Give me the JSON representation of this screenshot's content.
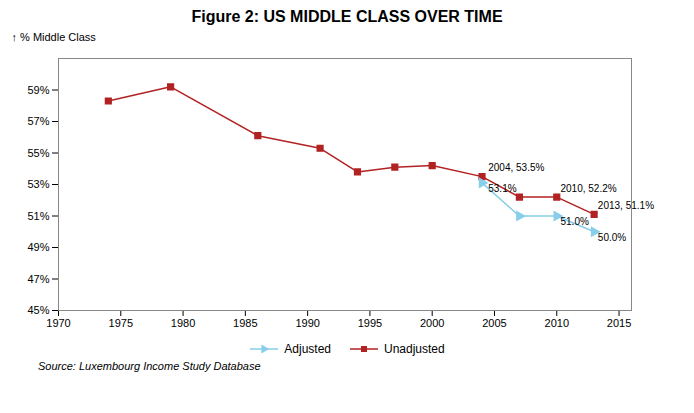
{
  "chart_data": {
    "type": "line",
    "title": "Figure 2: US MIDDLE CLASS OVER TIME",
    "ylabel": "% Middle Class",
    "source": "Source: Luxembourg Income Study Database",
    "xlim": [
      1970,
      2016
    ],
    "ylim": [
      45,
      61
    ],
    "xticks": [
      1970,
      1975,
      1980,
      1985,
      1990,
      1995,
      2000,
      2005,
      2010,
      2015
    ],
    "yticks": [
      {
        "value": 45,
        "label": "45%"
      },
      {
        "value": 47,
        "label": "47%"
      },
      {
        "value": 49,
        "label": "49%"
      },
      {
        "value": 51,
        "label": "51%"
      },
      {
        "value": 53,
        "label": "53%"
      },
      {
        "value": 55,
        "label": "55%"
      },
      {
        "value": 57,
        "label": "57%"
      },
      {
        "value": 59,
        "label": "59%"
      }
    ],
    "grid": false,
    "legend": "bottom",
    "series": [
      {
        "name": "Unadjusted",
        "color": "#B22222",
        "marker": "square",
        "x": [
          1974,
          1979,
          1986,
          1991,
          1994,
          1997,
          2000,
          2004,
          2007,
          2010,
          2013
        ],
        "values": [
          58.3,
          59.2,
          56.1,
          55.3,
          53.8,
          54.1,
          54.2,
          53.5,
          52.2,
          52.2,
          51.1
        ]
      },
      {
        "name": "Adjusted",
        "color": "#87CEEB",
        "marker": "triangle-right",
        "x": [
          2004,
          2007,
          2010,
          2013
        ],
        "values": [
          53.1,
          51.0,
          51.0,
          50.0
        ]
      }
    ],
    "annotations": [
      {
        "text": "2004, 53.5%",
        "x": 2004.5,
        "y": 53.85
      },
      {
        "text": "53.1%",
        "x": 2004.5,
        "y": 52.55
      },
      {
        "text": "2010, 52.2%",
        "x": 2010.3,
        "y": 52.55
      },
      {
        "text": "51.0%",
        "x": 2010.3,
        "y": 50.4
      },
      {
        "text": "2013, 51.1%",
        "x": 2013.3,
        "y": 51.45
      },
      {
        "text": "50.0%",
        "x": 2013.3,
        "y": 49.4
      }
    ]
  }
}
